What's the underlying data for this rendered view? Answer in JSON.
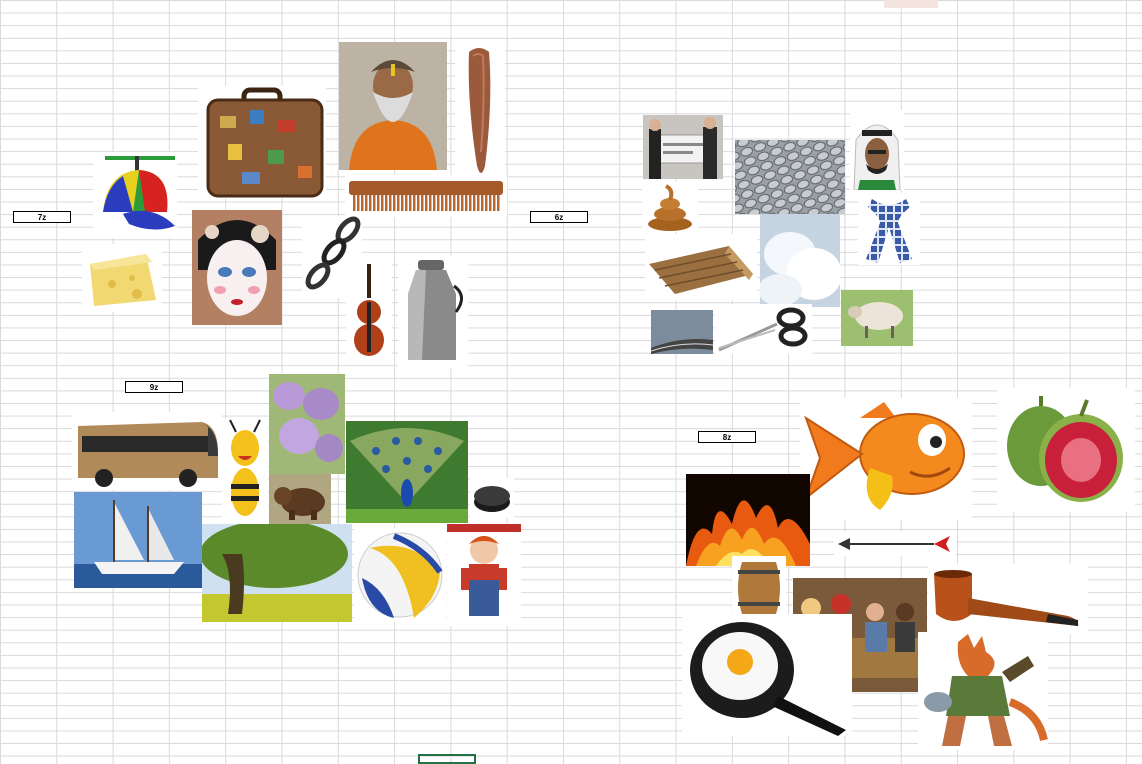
{
  "labels": {
    "seven": "7z",
    "six": "6z",
    "nine": "9z",
    "eight": "8z"
  },
  "colors": {
    "grid": "#d9d9d9",
    "selection": "#217346"
  }
}
